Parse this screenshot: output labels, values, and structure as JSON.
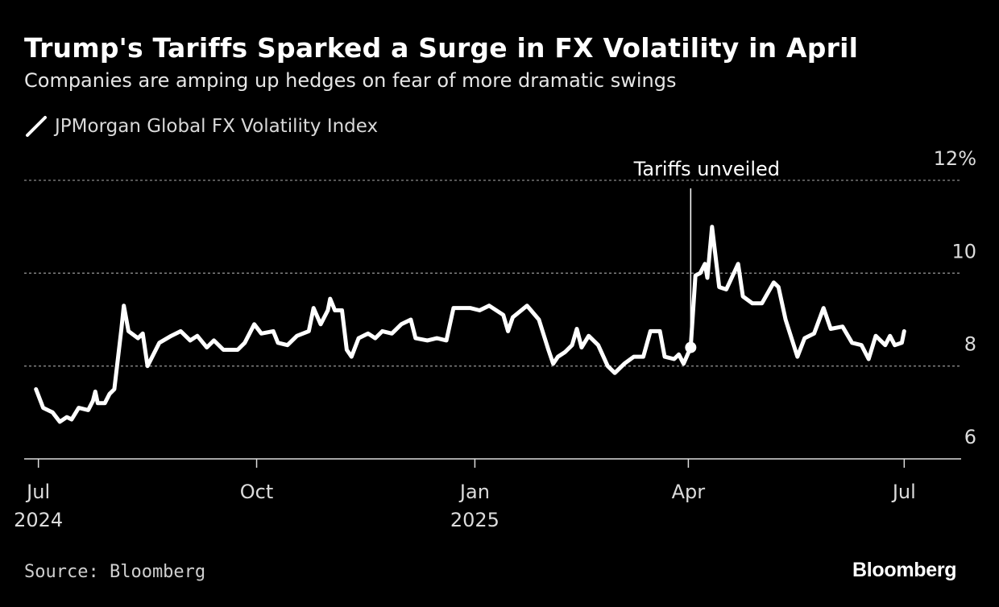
{
  "header": {
    "title": "Trump's Tariffs Sparked a Surge in FX Volatility in April",
    "subtitle": "Companies are amping up hedges on fear of more dramatic swings"
  },
  "footer": {
    "source": "Source: Bloomberg",
    "brand": "Bloomberg"
  },
  "colors": {
    "background": "#000000",
    "line": "#ffffff",
    "grid": "#8a8a8a",
    "text": "#ffffff",
    "muted": "#cccccc"
  },
  "chart_data": {
    "type": "line",
    "title": "Trump's Tariffs Sparked a Surge in FX Volatility in April",
    "subtitle": "Companies are amping up hedges on fear of more dramatic swings",
    "legend": [
      "JPMorgan Global FX Volatility Index"
    ],
    "ylim": [
      6,
      12
    ],
    "y_ticks": [
      {
        "value": 12,
        "label": "12%"
      },
      {
        "value": 10,
        "label": "10"
      },
      {
        "value": 8,
        "label": "8"
      },
      {
        "value": 6,
        "label": "6"
      }
    ],
    "y_grid_values": [
      12,
      10,
      8
    ],
    "x_range": [
      "2024-06-25",
      "2025-07-25"
    ],
    "x_ticks": [
      {
        "date": "2024-07-01",
        "label": "Jul",
        "sublabel": "2024"
      },
      {
        "date": "2024-10-01",
        "label": "Oct",
        "sublabel": ""
      },
      {
        "date": "2025-01-01",
        "label": "Jan",
        "sublabel": "2025"
      },
      {
        "date": "2025-04-01",
        "label": "Apr",
        "sublabel": ""
      },
      {
        "date": "2025-07-01",
        "label": "Jul",
        "sublabel": ""
      }
    ],
    "annotation": {
      "date": "2025-04-02",
      "label": "Tariffs unveiled",
      "value": 8.4
    },
    "series": [
      {
        "name": "JPMorgan Global FX Volatility Index",
        "points": [
          [
            "2024-06-30",
            7.5
          ],
          [
            "2024-07-03",
            7.1
          ],
          [
            "2024-07-07",
            7.0
          ],
          [
            "2024-07-10",
            6.8
          ],
          [
            "2024-07-13",
            6.9
          ],
          [
            "2024-07-15",
            6.85
          ],
          [
            "2024-07-18",
            7.1
          ],
          [
            "2024-07-22",
            7.05
          ],
          [
            "2024-07-24",
            7.25
          ],
          [
            "2024-07-25",
            7.45
          ],
          [
            "2024-07-26",
            7.2
          ],
          [
            "2024-07-29",
            7.2
          ],
          [
            "2024-07-31",
            7.4
          ],
          [
            "2024-08-02",
            7.5
          ],
          [
            "2024-08-05",
            8.8
          ],
          [
            "2024-08-06",
            9.3
          ],
          [
            "2024-08-08",
            8.75
          ],
          [
            "2024-08-12",
            8.6
          ],
          [
            "2024-08-14",
            8.7
          ],
          [
            "2024-08-16",
            8.0
          ],
          [
            "2024-08-21",
            8.5
          ],
          [
            "2024-08-26",
            8.65
          ],
          [
            "2024-08-30",
            8.75
          ],
          [
            "2024-09-03",
            8.55
          ],
          [
            "2024-09-06",
            8.65
          ],
          [
            "2024-09-10",
            8.4
          ],
          [
            "2024-09-13",
            8.55
          ],
          [
            "2024-09-17",
            8.35
          ],
          [
            "2024-09-23",
            8.35
          ],
          [
            "2024-09-26",
            8.5
          ],
          [
            "2024-09-30",
            8.9
          ],
          [
            "2024-10-03",
            8.7
          ],
          [
            "2024-10-08",
            8.75
          ],
          [
            "2024-10-10",
            8.5
          ],
          [
            "2024-10-14",
            8.45
          ],
          [
            "2024-10-18",
            8.65
          ],
          [
            "2024-10-23",
            8.75
          ],
          [
            "2024-10-25",
            9.25
          ],
          [
            "2024-10-28",
            8.9
          ],
          [
            "2024-10-31",
            9.2
          ],
          [
            "2024-11-01",
            9.45
          ],
          [
            "2024-11-03",
            9.2
          ],
          [
            "2024-11-06",
            9.2
          ],
          [
            "2024-11-08",
            8.35
          ],
          [
            "2024-11-10",
            8.2
          ],
          [
            "2024-11-13",
            8.6
          ],
          [
            "2024-11-17",
            8.7
          ],
          [
            "2024-11-20",
            8.6
          ],
          [
            "2024-11-23",
            8.75
          ],
          [
            "2024-11-27",
            8.7
          ],
          [
            "2024-12-01",
            8.9
          ],
          [
            "2024-12-05",
            9.0
          ],
          [
            "2024-12-07",
            8.6
          ],
          [
            "2024-12-12",
            8.55
          ],
          [
            "2024-12-16",
            8.6
          ],
          [
            "2024-12-20",
            8.55
          ],
          [
            "2024-12-23",
            9.25
          ],
          [
            "2024-12-30",
            9.25
          ],
          [
            "2025-01-03",
            9.2
          ],
          [
            "2025-01-07",
            9.3
          ],
          [
            "2025-01-13",
            9.1
          ],
          [
            "2025-01-15",
            8.75
          ],
          [
            "2025-01-17",
            9.05
          ],
          [
            "2025-01-23",
            9.3
          ],
          [
            "2025-01-28",
            9.0
          ],
          [
            "2025-02-01",
            8.35
          ],
          [
            "2025-02-03",
            8.05
          ],
          [
            "2025-02-05",
            8.2
          ],
          [
            "2025-02-08",
            8.3
          ],
          [
            "2025-02-11",
            8.45
          ],
          [
            "2025-02-13",
            8.8
          ],
          [
            "2025-02-15",
            8.4
          ],
          [
            "2025-02-18",
            8.65
          ],
          [
            "2025-02-22",
            8.45
          ],
          [
            "2025-02-26",
            8.0
          ],
          [
            "2025-03-01",
            7.85
          ],
          [
            "2025-03-05",
            8.05
          ],
          [
            "2025-03-09",
            8.2
          ],
          [
            "2025-03-13",
            8.2
          ],
          [
            "2025-03-16",
            8.75
          ],
          [
            "2025-03-20",
            8.75
          ],
          [
            "2025-03-22",
            8.2
          ],
          [
            "2025-03-26",
            8.15
          ],
          [
            "2025-03-28",
            8.25
          ],
          [
            "2025-03-30",
            8.05
          ],
          [
            "2025-04-02",
            8.4
          ],
          [
            "2025-04-04",
            9.95
          ],
          [
            "2025-04-06",
            10.0
          ],
          [
            "2025-04-08",
            10.2
          ],
          [
            "2025-04-09",
            9.9
          ],
          [
            "2025-04-11",
            11.0
          ],
          [
            "2025-04-14",
            9.7
          ],
          [
            "2025-04-17",
            9.65
          ],
          [
            "2025-04-22",
            10.2
          ],
          [
            "2025-04-24",
            9.5
          ],
          [
            "2025-04-28",
            9.35
          ],
          [
            "2025-05-02",
            9.35
          ],
          [
            "2025-05-07",
            9.8
          ],
          [
            "2025-05-09",
            9.7
          ],
          [
            "2025-05-12",
            9.0
          ],
          [
            "2025-05-17",
            8.2
          ],
          [
            "2025-05-20",
            8.6
          ],
          [
            "2025-05-24",
            8.7
          ],
          [
            "2025-05-28",
            9.25
          ],
          [
            "2025-05-31",
            8.8
          ],
          [
            "2025-06-05",
            8.85
          ],
          [
            "2025-06-09",
            8.5
          ],
          [
            "2025-06-13",
            8.45
          ],
          [
            "2025-06-16",
            8.15
          ],
          [
            "2025-06-19",
            8.65
          ],
          [
            "2025-06-23",
            8.45
          ],
          [
            "2025-06-25",
            8.65
          ],
          [
            "2025-06-27",
            8.45
          ],
          [
            "2025-06-30",
            8.5
          ],
          [
            "2025-07-01",
            8.75
          ]
        ]
      }
    ]
  }
}
